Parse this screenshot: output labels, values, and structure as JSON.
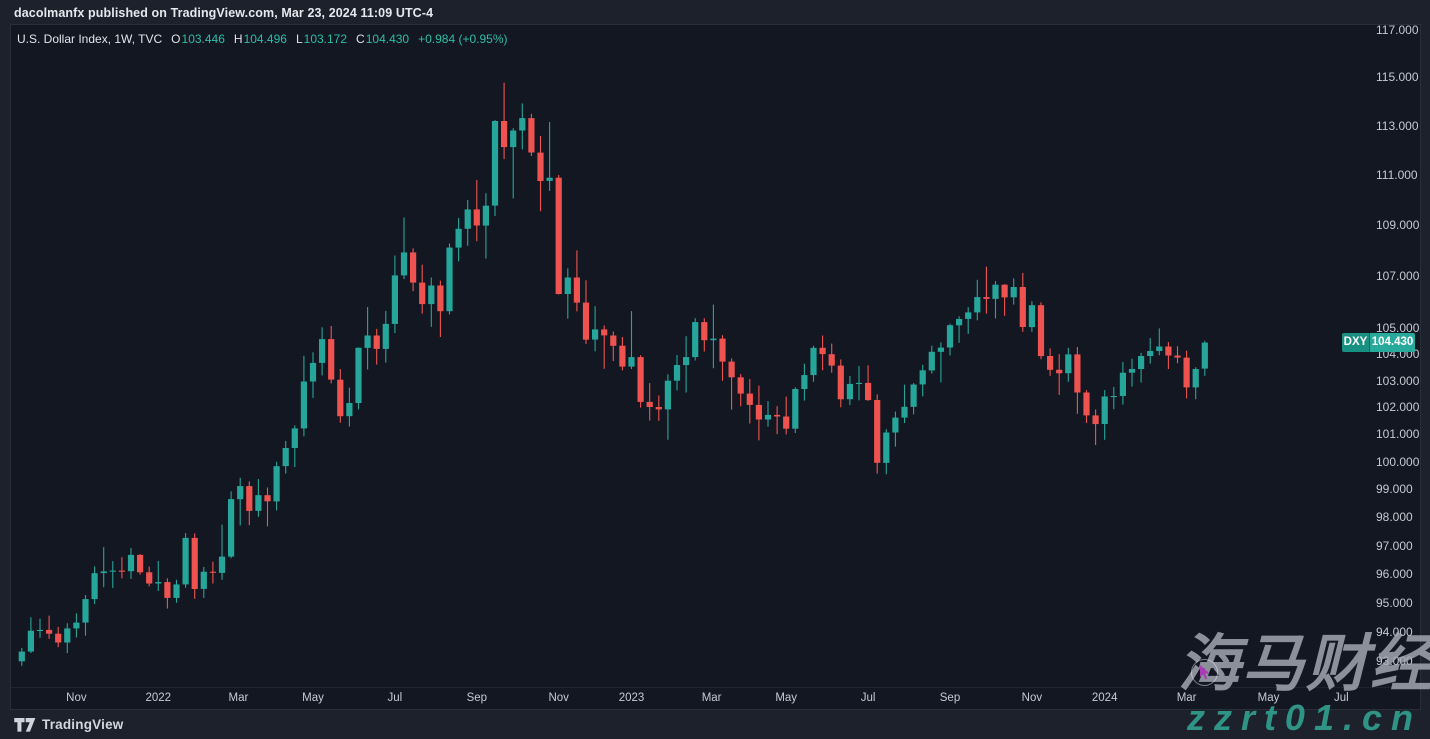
{
  "header": {
    "publish_line": "dacolmanfx published on TradingView.com, Mar 23, 2024 11:09 UTC-4"
  },
  "legend": {
    "title": "U.S. Dollar Index, 1W, TVC",
    "ohlc": [
      {
        "label": "O",
        "value": "103.446"
      },
      {
        "label": "H",
        "value": "104.496"
      },
      {
        "label": "L",
        "value": "103.172"
      },
      {
        "label": "C",
        "value": "104.430"
      }
    ],
    "change": "+0.984 (+0.95%)"
  },
  "price_label": {
    "symbol": "DXY",
    "price": "104.430"
  },
  "watermark": {
    "title": "海马财经",
    "subtitle": "zzrt01.cn"
  },
  "footer": {
    "brand": "TradingView",
    "logo_icon": "tradingview-logo"
  },
  "colors": {
    "up": "#26a69a",
    "down": "#ef5350",
    "panel_background": "#131722",
    "page_background": "#1d212c",
    "axis_text": "#c6c9d1",
    "legend_value": "#2cbea8",
    "badge_teal": "#27a99c",
    "watermark_url_teal": "#2f9386",
    "cursor_purple": "#a93bb5"
  },
  "chart_data": {
    "type": "candlestick",
    "title": "U.S. Dollar Index",
    "symbol": "DXY",
    "interval": "1W",
    "exchange": "TVC",
    "price_scale": "logarithmic",
    "first_week": "2021-09-20",
    "last_close": 104.43,
    "ylim": [
      92.5,
      117.5
    ],
    "grid": false,
    "y_ticks": [
      117,
      115,
      113,
      111,
      109,
      107,
      105,
      104,
      103,
      102,
      101,
      100,
      99,
      98,
      97,
      96,
      95,
      94,
      93
    ],
    "x_labels": [
      [
        "Nov",
        6
      ],
      [
        "2022",
        15
      ],
      [
        "Mar",
        23.8
      ],
      [
        "May",
        32
      ],
      [
        "Jul",
        41
      ],
      [
        "Sep",
        50
      ],
      [
        "Nov",
        59
      ],
      [
        "2023",
        67
      ],
      [
        "Mar",
        75.8
      ],
      [
        "May",
        84
      ],
      [
        "Jul",
        93
      ],
      [
        "Sep",
        102
      ],
      [
        "Nov",
        111
      ],
      [
        "2024",
        119
      ],
      [
        "Mar",
        128
      ],
      [
        "May",
        137
      ],
      [
        "Jul",
        145
      ]
    ],
    "candles": [
      [
        93.0,
        93.45,
        92.85,
        93.33
      ],
      [
        93.33,
        94.5,
        93.28,
        94.04
      ],
      [
        94.04,
        94.45,
        93.8,
        94.07
      ],
      [
        94.07,
        94.56,
        93.76,
        93.94
      ],
      [
        93.94,
        94.17,
        93.48,
        93.64
      ],
      [
        93.64,
        94.3,
        93.28,
        94.12
      ],
      [
        94.12,
        94.63,
        93.81,
        94.32
      ],
      [
        94.32,
        95.27,
        93.87,
        95.13
      ],
      [
        95.13,
        96.27,
        94.96,
        96.03
      ],
      [
        96.03,
        96.94,
        95.54,
        96.09
      ],
      [
        96.09,
        96.45,
        95.51,
        96.12
      ],
      [
        96.12,
        96.59,
        95.85,
        96.1
      ],
      [
        96.1,
        96.91,
        95.83,
        96.67
      ],
      [
        96.67,
        96.7,
        95.98,
        96.06
      ],
      [
        96.06,
        96.26,
        95.57,
        95.67
      ],
      [
        95.67,
        96.46,
        95.41,
        95.72
      ],
      [
        95.72,
        95.85,
        94.8,
        95.17
      ],
      [
        95.17,
        95.8,
        95.0,
        95.64
      ],
      [
        95.64,
        97.44,
        95.52,
        97.27
      ],
      [
        97.27,
        97.43,
        95.14,
        95.48
      ],
      [
        95.48,
        96.25,
        95.17,
        96.08
      ],
      [
        96.08,
        96.43,
        95.67,
        96.04
      ],
      [
        96.04,
        97.74,
        95.8,
        96.61
      ],
      [
        96.61,
        98.93,
        96.55,
        98.65
      ],
      [
        98.65,
        99.42,
        97.71,
        99.12
      ],
      [
        99.12,
        99.29,
        97.72,
        98.23
      ],
      [
        98.23,
        99.37,
        98.02,
        98.79
      ],
      [
        98.79,
        99.07,
        97.68,
        98.57
      ],
      [
        98.57,
        100.0,
        98.25,
        99.84
      ],
      [
        99.84,
        100.76,
        99.57,
        100.5
      ],
      [
        100.5,
        101.33,
        99.81,
        101.22
      ],
      [
        101.22,
        103.93,
        100.93,
        102.96
      ],
      [
        102.96,
        104.06,
        102.35,
        103.66
      ],
      [
        103.66,
        105.01,
        103.19,
        104.56
      ],
      [
        104.56,
        105.06,
        102.89,
        103.03
      ],
      [
        103.03,
        103.43,
        101.43,
        101.67
      ],
      [
        101.67,
        102.73,
        101.29,
        102.16
      ],
      [
        102.16,
        104.25,
        101.92,
        104.23
      ],
      [
        104.23,
        105.79,
        103.41,
        104.7
      ],
      [
        104.7,
        104.95,
        103.6,
        104.19
      ],
      [
        104.19,
        105.64,
        103.67,
        105.14
      ],
      [
        105.14,
        107.79,
        104.79,
        107.01
      ],
      [
        107.01,
        109.29,
        106.87,
        107.91
      ],
      [
        107.91,
        108.07,
        106.4,
        106.73
      ],
      [
        106.73,
        107.43,
        105.53,
        105.9
      ],
      [
        105.9,
        106.93,
        105.03,
        106.62
      ],
      [
        106.62,
        106.81,
        104.64,
        105.63
      ],
      [
        105.63,
        108.26,
        105.5,
        108.1
      ],
      [
        108.1,
        109.27,
        107.56,
        108.84
      ],
      [
        108.84,
        109.99,
        108.17,
        109.61
      ],
      [
        109.61,
        110.79,
        108.35,
        108.97
      ],
      [
        108.97,
        110.26,
        107.67,
        109.76
      ],
      [
        109.76,
        113.23,
        109.35,
        113.19
      ],
      [
        113.19,
        114.78,
        111.64,
        112.12
      ],
      [
        112.12,
        112.9,
        110.05,
        112.8
      ],
      [
        112.8,
        113.92,
        112.03,
        113.31
      ],
      [
        113.31,
        113.49,
        111.76,
        111.9
      ],
      [
        111.9,
        112.58,
        109.54,
        110.75
      ],
      [
        110.75,
        113.15,
        110.35,
        110.88
      ],
      [
        110.88,
        110.99,
        106.27,
        106.29
      ],
      [
        106.29,
        107.29,
        105.34,
        106.93
      ],
      [
        106.93,
        107.99,
        105.62,
        105.96
      ],
      [
        105.96,
        106.82,
        104.37,
        104.54
      ],
      [
        104.54,
        105.82,
        104.1,
        104.93
      ],
      [
        104.93,
        105.08,
        103.44,
        104.7
      ],
      [
        104.7,
        104.85,
        103.73,
        104.31
      ],
      [
        104.31,
        104.64,
        103.38,
        103.52
      ],
      [
        103.52,
        105.63,
        103.43,
        103.88
      ],
      [
        103.88,
        103.95,
        101.99,
        102.2
      ],
      [
        102.2,
        102.9,
        101.51,
        102.01
      ],
      [
        102.01,
        102.44,
        101.5,
        101.92
      ],
      [
        101.92,
        103.23,
        100.8,
        102.99
      ],
      [
        102.99,
        103.96,
        102.63,
        103.58
      ],
      [
        103.58,
        104.67,
        102.55,
        103.88
      ],
      [
        103.88,
        105.36,
        103.75,
        105.21
      ],
      [
        105.21,
        105.36,
        104.09,
        104.52
      ],
      [
        104.52,
        105.88,
        103.46,
        104.58
      ],
      [
        104.58,
        104.71,
        102.99,
        103.71
      ],
      [
        103.71,
        103.83,
        101.91,
        103.12
      ],
      [
        103.12,
        103.24,
        102.04,
        102.51
      ],
      [
        102.51,
        103.05,
        101.4,
        102.09
      ],
      [
        102.09,
        102.81,
        100.78,
        101.55
      ],
      [
        101.55,
        102.23,
        101.28,
        101.72
      ],
      [
        101.72,
        102.04,
        101.01,
        101.66
      ],
      [
        101.66,
        102.4,
        101.0,
        101.21
      ],
      [
        101.21,
        102.75,
        101.05,
        102.68
      ],
      [
        102.68,
        103.63,
        102.25,
        103.2
      ],
      [
        103.2,
        104.31,
        102.95,
        104.23
      ],
      [
        104.23,
        104.7,
        103.38,
        103.99
      ],
      [
        103.99,
        104.39,
        103.29,
        103.56
      ],
      [
        103.56,
        103.79,
        102.0,
        102.3
      ],
      [
        102.3,
        103.17,
        102.08,
        102.87
      ],
      [
        102.87,
        103.54,
        102.26,
        102.91
      ],
      [
        102.91,
        103.57,
        102.24,
        102.27
      ],
      [
        102.27,
        102.48,
        99.57,
        99.96
      ],
      [
        99.96,
        101.19,
        99.55,
        101.07
      ],
      [
        101.07,
        101.84,
        100.55,
        101.62
      ],
      [
        101.62,
        102.84,
        101.42,
        102.02
      ],
      [
        102.02,
        102.9,
        101.74,
        102.85
      ],
      [
        102.85,
        103.59,
        102.41,
        103.38
      ],
      [
        103.38,
        104.31,
        103.26,
        104.08
      ],
      [
        104.08,
        104.44,
        102.93,
        104.24
      ],
      [
        104.24,
        105.15,
        103.94,
        105.09
      ],
      [
        105.09,
        105.43,
        104.42,
        105.33
      ],
      [
        105.33,
        105.78,
        104.76,
        105.58
      ],
      [
        105.58,
        106.84,
        105.28,
        106.17
      ],
      [
        106.17,
        107.35,
        105.53,
        106.1
      ],
      [
        106.1,
        106.79,
        105.35,
        106.65
      ],
      [
        106.65,
        106.67,
        105.45,
        106.16
      ],
      [
        106.16,
        106.9,
        105.88,
        106.56
      ],
      [
        106.56,
        107.11,
        104.84,
        105.02
      ],
      [
        105.02,
        106.01,
        104.84,
        105.86
      ],
      [
        105.86,
        105.97,
        103.8,
        103.92
      ],
      [
        103.92,
        104.21,
        103.17,
        103.4
      ],
      [
        103.4,
        103.99,
        102.46,
        103.27
      ],
      [
        103.27,
        104.23,
        102.95,
        103.98
      ],
      [
        103.98,
        104.26,
        101.76,
        102.55
      ],
      [
        102.55,
        102.64,
        101.42,
        101.7
      ],
      [
        101.7,
        101.92,
        100.61,
        101.38
      ],
      [
        101.38,
        102.64,
        100.8,
        102.4
      ],
      [
        102.4,
        102.76,
        101.93,
        102.42
      ],
      [
        102.42,
        103.69,
        102.1,
        103.29
      ],
      [
        103.29,
        103.82,
        102.77,
        103.43
      ],
      [
        103.43,
        104.04,
        102.92,
        103.92
      ],
      [
        103.92,
        104.6,
        103.63,
        104.11
      ],
      [
        104.11,
        104.97,
        103.95,
        104.28
      ],
      [
        104.28,
        104.45,
        103.43,
        103.94
      ],
      [
        103.94,
        104.29,
        103.65,
        103.86
      ],
      [
        103.86,
        104.12,
        102.33,
        102.74
      ],
      [
        102.74,
        103.5,
        102.3,
        103.43
      ],
      [
        103.446,
        104.496,
        103.172,
        104.43
      ]
    ]
  }
}
